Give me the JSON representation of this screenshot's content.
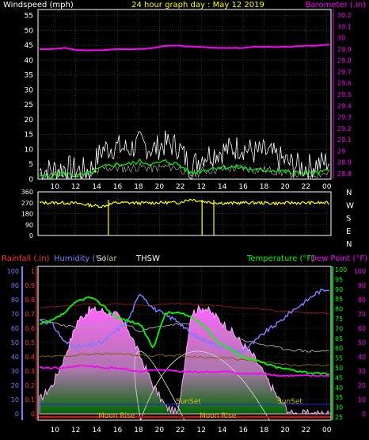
{
  "colors": {
    "background": "#000000",
    "frame": "#ffffff",
    "grid": "#555555",
    "title": "#ffff00",
    "wind_label": "#ffffff",
    "baro": "#ff00ff",
    "wind_gust": "#ffffff",
    "wind_avg": "#00ff00",
    "wind_low": "#c0c0c0",
    "direction": "#ffff00",
    "rain": "#ff3333",
    "humidity": "#7b7bff",
    "solar": "#ffaaff",
    "solar_fill_top": "#ff66ff",
    "solar_fill_bottom": "#006600",
    "thsw": "#ffffff",
    "temperature": "#00ff00",
    "dewpoint": "#ff00ff",
    "temp_grey": "#a0a0a0",
    "dark_red": "#8b1a1a",
    "olive": "#806000",
    "sun_curve": "#c8c8c8",
    "sunset_text": "#c8c800",
    "moon_text": "#c8c800",
    "baseline_red": "#ff0000"
  },
  "top": {
    "title": "24 hour graph day : May 12 2019",
    "left_label": "Windspeed (mph)",
    "right_label": "Barometer (.in)"
  },
  "bottom": {
    "rain_label": "Rainfall (.in)",
    "humidity_label": "Humidity (%)",
    "solar_label": "Solar",
    "thsw_label": "THSW",
    "temp_label": "Temperature (°F)",
    "dew_label": "Dew Point (°F)",
    "sunset_label": "SunSet",
    "moonrise_label": "Moon Rise"
  },
  "chart_data": [
    {
      "type": "line",
      "title": "24 hour graph day : May 12 2019",
      "x_ticks": [
        "10",
        "12",
        "14",
        "16",
        "18",
        "20",
        "22",
        "12",
        "14",
        "16",
        "18",
        "20",
        "22",
        "00"
      ],
      "y_left_ticks": [
        "0",
        "5",
        "10",
        "15",
        "20",
        "25",
        "30",
        "35",
        "40",
        "45",
        "50",
        "55"
      ],
      "y_left_range": [
        0,
        57
      ],
      "y_right_ticks": [
        "28.8",
        "28.9",
        "29",
        "29.1",
        "29.2",
        "29.3",
        "29.4",
        "29.5",
        "29.6",
        "29.7",
        "29.8",
        "29.9",
        "30",
        "30.1",
        "30.2"
      ],
      "y_right_range": [
        28.75,
        30.25
      ],
      "series": [
        {
          "name": "Barometer (.in)",
          "axis": "right",
          "values": [
            29.9,
            29.9,
            29.91,
            29.89,
            29.89,
            29.89,
            29.9,
            29.9,
            29.9,
            29.91,
            29.93,
            29.93,
            29.92,
            29.92,
            29.91,
            29.91,
            29.91,
            29.92,
            29.92,
            29.92,
            29.92,
            29.93,
            29.93,
            29.94
          ]
        },
        {
          "name": "Windspeed (mph)",
          "axis": "left",
          "style": "gust",
          "values": [
            3,
            3,
            4,
            3,
            3,
            10,
            11,
            10,
            12,
            10,
            12,
            11,
            4,
            8,
            9,
            10,
            11,
            9,
            9,
            7,
            5,
            4,
            5,
            6
          ]
        },
        {
          "name": "Windspeed (mph)",
          "axis": "left",
          "style": "average",
          "values": [
            1,
            1,
            2,
            1,
            2,
            4,
            5,
            5,
            6,
            5,
            6,
            5,
            2,
            3,
            4,
            4,
            4,
            3,
            3,
            3,
            2,
            2,
            2,
            3
          ]
        }
      ]
    },
    {
      "type": "scatter",
      "y_ticks": [
        "360",
        "270",
        "180",
        "90",
        "0"
      ],
      "y_range": [
        0,
        360
      ],
      "compass": [
        "N",
        "W",
        "S",
        "E",
        "N"
      ],
      "series": [
        {
          "name": "Wind direction",
          "values": [
            270,
            270,
            270,
            265,
            250,
            240,
            270,
            270,
            268,
            270,
            272,
            270,
            300,
            280,
            270,
            265,
            270,
            270,
            268,
            265,
            270,
            268,
            270,
            268
          ]
        }
      ]
    },
    {
      "type": "area",
      "x_ticks": [
        "10",
        "12",
        "14",
        "16",
        "18",
        "20",
        "22",
        "12",
        "14",
        "16",
        "18",
        "20",
        "22",
        "00"
      ],
      "y_left_ticks": [
        "0",
        "10",
        "20",
        "30",
        "40",
        "50",
        "60",
        "70",
        "80",
        "90",
        "100"
      ],
      "y_left_range": [
        0,
        100
      ],
      "y_rain_ticks": [
        "0",
        "0.1",
        "0.2",
        "0.3",
        "0.4",
        "0.5",
        "0.6",
        "0.7",
        "0.8",
        "0.9",
        "1"
      ],
      "y_right_ticks": [
        "25",
        "30",
        "35",
        "40",
        "45",
        "50",
        "55",
        "60",
        "65",
        "70",
        "75",
        "80",
        "85",
        "90",
        "95",
        "100"
      ],
      "y_right_range": [
        25,
        100
      ],
      "y_far_right_ticks": [
        "0",
        "10",
        "20",
        "30",
        "40",
        "50",
        "60",
        "70",
        "80",
        "90",
        "100"
      ],
      "annotations": [
        "SunSet",
        "SunSet",
        "Moon Rise",
        "Moon Rise"
      ],
      "series": [
        {
          "name": "Humidity (%)",
          "axis": "left",
          "values": [
            66,
            63,
            50,
            47,
            48,
            50,
            58,
            65,
            85,
            74,
            69,
            65,
            56,
            52,
            48,
            46,
            43,
            50,
            58,
            64,
            72,
            78,
            85,
            88
          ]
        },
        {
          "name": "Temperature (°F)",
          "axis": "right",
          "values": [
            72,
            74,
            78,
            84,
            86,
            82,
            76,
            74,
            72,
            60,
            78,
            78,
            76,
            72,
            64,
            60,
            56,
            54,
            52,
            50,
            49,
            48,
            47,
            47
          ]
        },
        {
          "name": "Dew Point (°F)",
          "axis": "right",
          "values": [
            50,
            50,
            50,
            51,
            51,
            50,
            50,
            49,
            48,
            49,
            49,
            48,
            48,
            48,
            48,
            48,
            47,
            47,
            47,
            46,
            46,
            46,
            46,
            46
          ]
        },
        {
          "name": "Solar",
          "axis": "left",
          "values": [
            10,
            20,
            40,
            65,
            73,
            72,
            70,
            60,
            40,
            20,
            5,
            0,
            70,
            75,
            68,
            60,
            50,
            40,
            25,
            10,
            0,
            0,
            0,
            0
          ]
        }
      ]
    }
  ]
}
